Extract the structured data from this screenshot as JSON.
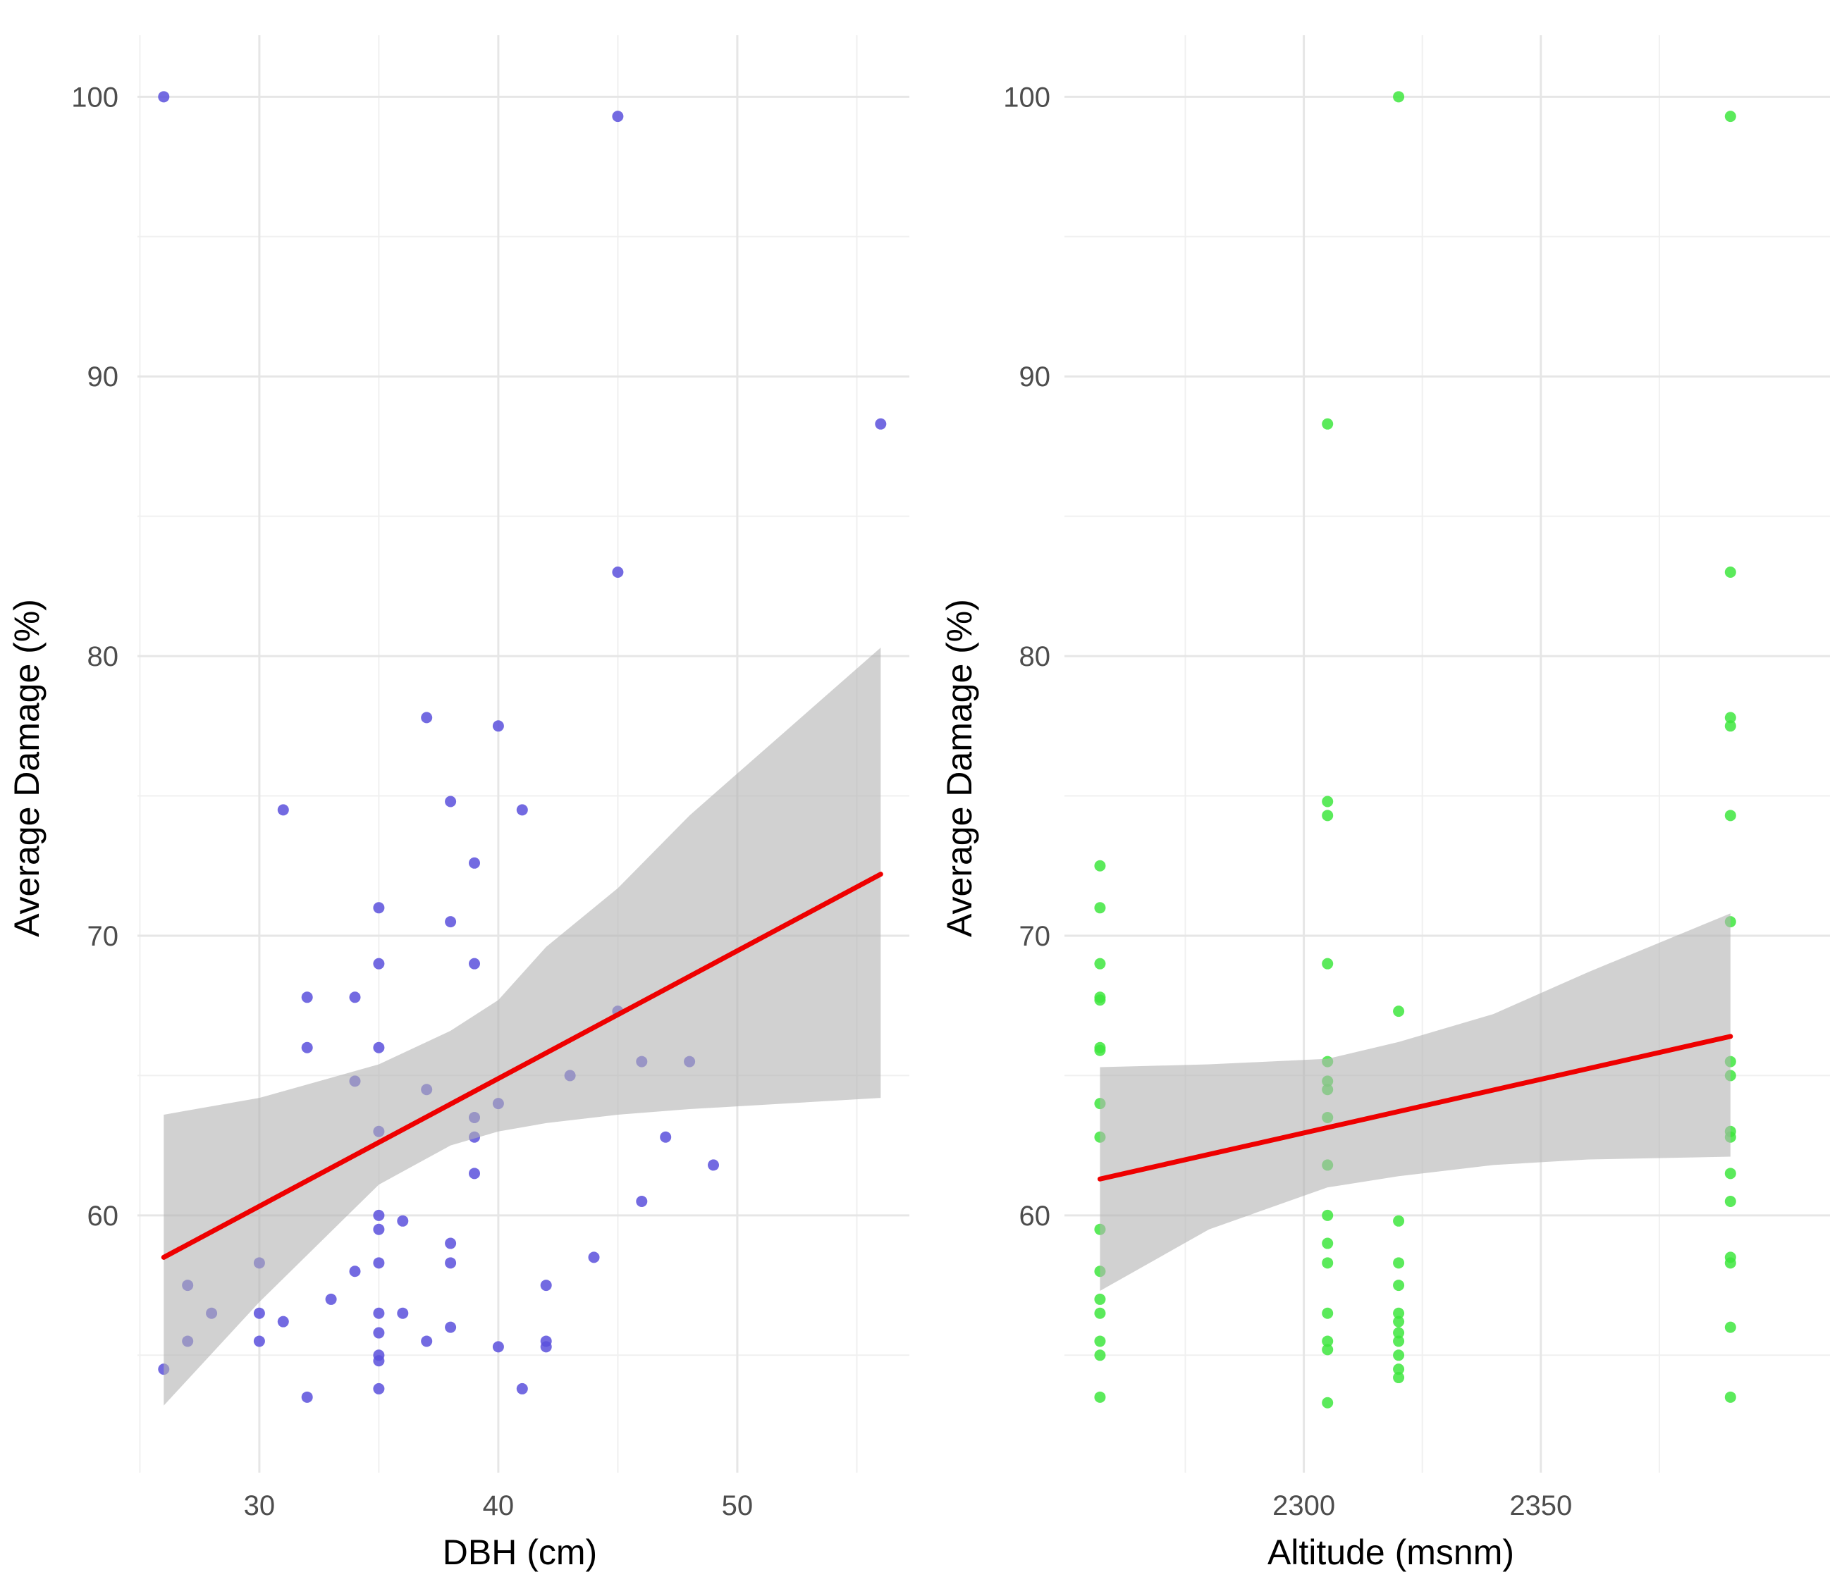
{
  "chart_data": [
    {
      "type": "scatter",
      "xlabel": "DBH (cm)",
      "ylabel": "Average Damage (%)",
      "xlim": [
        24.9,
        57.2
      ],
      "ylim": [
        50.8,
        102.2
      ],
      "x_ticks": [
        30,
        40,
        50
      ],
      "x_tick_labels": [
        "30",
        "40",
        "50"
      ],
      "y_ticks": [
        60,
        70,
        80,
        90,
        100
      ],
      "y_tick_labels": [
        "60",
        "70",
        "80",
        "90",
        "100"
      ],
      "grid": true,
      "point_color": "#5a50dc",
      "fit_line_color": "#ee0000",
      "ribbon_color": "#b3b3b3",
      "points": [
        [
          26,
          100
        ],
        [
          45,
          99.3
        ],
        [
          56,
          88.3
        ],
        [
          45,
          83
        ],
        [
          37,
          77.8
        ],
        [
          40,
          77.5
        ],
        [
          31,
          74.5
        ],
        [
          41,
          74.5
        ],
        [
          38,
          74.8
        ],
        [
          39,
          72.6
        ],
        [
          35,
          71
        ],
        [
          38,
          70.5
        ],
        [
          35,
          69
        ],
        [
          39,
          69
        ],
        [
          32,
          67.8
        ],
        [
          34,
          67.8
        ],
        [
          45,
          67.3
        ],
        [
          32,
          66
        ],
        [
          35,
          66
        ],
        [
          46,
          65.5
        ],
        [
          48,
          65.5
        ],
        [
          43,
          65
        ],
        [
          34,
          64.8
        ],
        [
          37,
          64.5
        ],
        [
          40,
          64
        ],
        [
          39,
          63.5
        ],
        [
          35,
          63
        ],
        [
          47,
          62.8
        ],
        [
          39,
          62.8
        ],
        [
          49,
          61.8
        ],
        [
          39,
          61.5
        ],
        [
          46,
          60.5
        ],
        [
          35,
          60
        ],
        [
          36,
          59.8
        ],
        [
          35,
          59.5
        ],
        [
          38,
          59
        ],
        [
          44,
          58.5
        ],
        [
          30,
          58.3
        ],
        [
          35,
          58.3
        ],
        [
          38,
          58.3
        ],
        [
          34,
          58
        ],
        [
          27,
          57.5
        ],
        [
          42,
          57.5
        ],
        [
          33,
          57
        ],
        [
          28,
          56.5
        ],
        [
          30,
          56.5
        ],
        [
          35,
          56.5
        ],
        [
          36,
          56.5
        ],
        [
          31,
          56.2
        ],
        [
          38,
          56
        ],
        [
          35,
          55.8
        ],
        [
          27,
          55.5
        ],
        [
          30,
          55.5
        ],
        [
          37,
          55.5
        ],
        [
          42,
          55.5
        ],
        [
          40,
          55.3
        ],
        [
          42,
          55.3
        ],
        [
          35,
          55
        ],
        [
          35,
          54.8
        ],
        [
          26,
          54.5
        ],
        [
          35,
          53.8
        ],
        [
          41,
          53.8
        ],
        [
          32,
          53.5
        ]
      ],
      "fit_line": {
        "x": [
          26,
          56
        ],
        "y": [
          58.5,
          72.2
        ]
      },
      "ribbon": {
        "x": [
          26,
          30,
          35,
          38,
          40,
          42,
          45,
          48,
          52,
          56
        ],
        "lower": [
          53.2,
          56.9,
          61.1,
          62.5,
          63,
          63.3,
          63.6,
          63.8,
          64,
          64.2
        ],
        "upper": [
          63.6,
          64.2,
          65.4,
          66.6,
          67.7,
          69.6,
          71.7,
          74.3,
          77.3,
          80.3
        ]
      }
    },
    {
      "type": "scatter",
      "xlabel": "Altitude (msnm)",
      "ylabel": "Average Damage (%)",
      "xlim": [
        2249.5,
        2411
      ],
      "ylim": [
        50.8,
        102.2
      ],
      "x_ticks": [
        2300,
        2350
      ],
      "x_tick_labels": [
        "2300",
        "2350"
      ],
      "y_ticks": [
        60,
        70,
        80,
        90,
        100
      ],
      "y_tick_labels": [
        "60",
        "70",
        "80",
        "90",
        "100"
      ],
      "grid": true,
      "point_color": "#3ee63e",
      "fit_line_color": "#ee0000",
      "ribbon_color": "#b3b3b3",
      "points": [
        [
          2257,
          72.5
        ],
        [
          2257,
          71
        ],
        [
          2257,
          69
        ],
        [
          2257,
          67.8
        ],
        [
          2257,
          67.7
        ],
        [
          2257,
          66
        ],
        [
          2257,
          65.9
        ],
        [
          2257,
          64
        ],
        [
          2257,
          62.8
        ],
        [
          2257,
          59.5
        ],
        [
          2257,
          58
        ],
        [
          2257,
          57
        ],
        [
          2257,
          56.5
        ],
        [
          2257,
          55.5
        ],
        [
          2257,
          55
        ],
        [
          2257,
          53.5
        ],
        [
          2305,
          88.3
        ],
        [
          2305,
          74.8
        ],
        [
          2305,
          74.3
        ],
        [
          2305,
          69
        ],
        [
          2305,
          65.5
        ],
        [
          2305,
          64.8
        ],
        [
          2305,
          64.5
        ],
        [
          2305,
          63.5
        ],
        [
          2305,
          61.8
        ],
        [
          2305,
          60
        ],
        [
          2305,
          59
        ],
        [
          2305,
          58.3
        ],
        [
          2305,
          56.5
        ],
        [
          2305,
          55.5
        ],
        [
          2305,
          55.2
        ],
        [
          2305,
          53.3
        ],
        [
          2320,
          100
        ],
        [
          2320,
          67.3
        ],
        [
          2320,
          59.8
        ],
        [
          2320,
          58.3
        ],
        [
          2320,
          57.5
        ],
        [
          2320,
          56.5
        ],
        [
          2320,
          56.2
        ],
        [
          2320,
          55.8
        ],
        [
          2320,
          55.5
        ],
        [
          2320,
          55
        ],
        [
          2320,
          54.5
        ],
        [
          2320,
          54.2
        ],
        [
          2390,
          99.3
        ],
        [
          2390,
          83
        ],
        [
          2390,
          77.8
        ],
        [
          2390,
          77.5
        ],
        [
          2390,
          74.3
        ],
        [
          2390,
          70.5
        ],
        [
          2390,
          65.5
        ],
        [
          2390,
          65
        ],
        [
          2390,
          63
        ],
        [
          2390,
          62.8
        ],
        [
          2390,
          61.5
        ],
        [
          2390,
          60.5
        ],
        [
          2390,
          58.5
        ],
        [
          2390,
          58.3
        ],
        [
          2390,
          56
        ],
        [
          2390,
          53.5
        ]
      ],
      "fit_line": {
        "x": [
          2257,
          2390
        ],
        "y": [
          61.3,
          66.4
        ]
      },
      "ribbon": {
        "x": [
          2257,
          2280,
          2305,
          2320,
          2340,
          2360,
          2390
        ],
        "lower": [
          57.3,
          59.5,
          61,
          61.4,
          61.8,
          62,
          62.1
        ],
        "upper": [
          65.3,
          65.4,
          65.6,
          66.2,
          67.2,
          68.7,
          70.8
        ]
      }
    }
  ]
}
